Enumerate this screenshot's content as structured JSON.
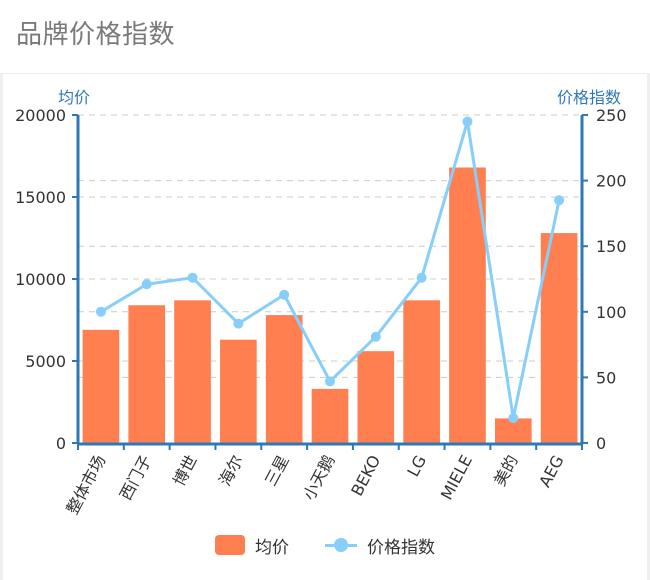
{
  "title": "品牌价格指数",
  "colors": {
    "bar": "#ff7f50",
    "line": "#87cefa",
    "axis": "#2f78b7",
    "grid": "#cccccc"
  },
  "chart_data": {
    "type": "bar+line",
    "categories": [
      "整体市场",
      "西门子",
      "博世",
      "海尔",
      "三星",
      "小天鹅",
      "BEKO",
      "LG",
      "MIELE",
      "美的",
      "AEG"
    ],
    "series": [
      {
        "name": "均价",
        "type": "bar",
        "axis": "left",
        "values": [
          6900,
          8400,
          8700,
          6300,
          7800,
          3300,
          5600,
          8700,
          16800,
          1500,
          12800
        ]
      },
      {
        "name": "价格指数",
        "type": "line",
        "axis": "right",
        "values": [
          100,
          121,
          126,
          91,
          113,
          47,
          81,
          126,
          245,
          19,
          185
        ]
      }
    ],
    "ylabel": "均价",
    "y2label": "价格指数",
    "ylim": [
      0,
      20000
    ],
    "y2lim": [
      0,
      250
    ],
    "yticks": [
      "0",
      "5000",
      "10000",
      "15000",
      "20000"
    ],
    "y2ticks": [
      "0",
      "50",
      "100",
      "150",
      "200",
      "250"
    ],
    "grid": true,
    "legend_position": "bottom"
  }
}
